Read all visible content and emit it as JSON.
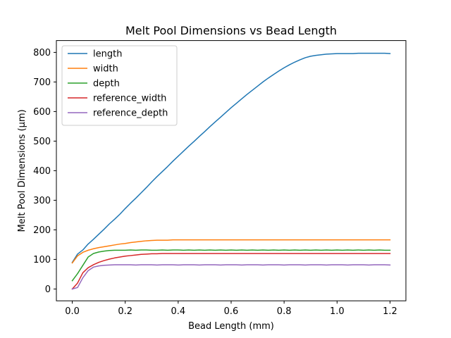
{
  "chart_data": {
    "type": "line",
    "title": "Melt Pool Dimensions vs Bead Length",
    "xlabel": "Bead Length (mm)",
    "ylabel": "Melt Pool Dimensions (µm)",
    "xlim": [
      -0.06,
      1.26
    ],
    "ylim": [
      -40,
      840
    ],
    "xticks": [
      0.0,
      0.2,
      0.4,
      0.6,
      0.8,
      1.0,
      1.2
    ],
    "xtick_labels": [
      "0.0",
      "0.2",
      "0.4",
      "0.6",
      "0.8",
      "1.0",
      "1.2"
    ],
    "yticks": [
      0,
      100,
      200,
      300,
      400,
      500,
      600,
      700,
      800
    ],
    "ytick_labels": [
      "0",
      "100",
      "200",
      "300",
      "400",
      "500",
      "600",
      "700",
      "800"
    ],
    "grid": false,
    "legend_position": "top-left",
    "x": [
      0.0,
      0.02,
      0.04,
      0.06,
      0.08,
      0.1,
      0.12,
      0.14,
      0.16,
      0.18,
      0.2,
      0.22,
      0.24,
      0.26,
      0.28,
      0.3,
      0.32,
      0.34,
      0.36,
      0.38,
      0.4,
      0.42,
      0.44,
      0.46,
      0.48,
      0.5,
      0.52,
      0.54,
      0.56,
      0.58,
      0.6,
      0.62,
      0.64,
      0.66,
      0.68,
      0.7,
      0.72,
      0.74,
      0.76,
      0.78,
      0.8,
      0.82,
      0.84,
      0.86,
      0.88,
      0.9,
      0.92,
      0.94,
      0.96,
      0.98,
      1.0,
      1.02,
      1.04,
      1.06,
      1.08,
      1.1,
      1.12,
      1.14,
      1.16,
      1.18,
      1.2
    ],
    "series": [
      {
        "name": "length",
        "color": "#1f77b4",
        "values": [
          90,
          118,
          132,
          152,
          168,
          185,
          202,
          220,
          236,
          253,
          272,
          290,
          307,
          325,
          343,
          362,
          380,
          397,
          414,
          432,
          449,
          466,
          483,
          499,
          516,
          532,
          549,
          565,
          581,
          597,
          613,
          628,
          643,
          658,
          672,
          686,
          700,
          713,
          725,
          737,
          748,
          758,
          767,
          775,
          782,
          787,
          790,
          792,
          794,
          795,
          796,
          796,
          796,
          796,
          797,
          797,
          797,
          797,
          797,
          797,
          796
        ]
      },
      {
        "name": "width",
        "color": "#ff7f0e",
        "values": [
          88,
          112,
          124,
          131,
          136,
          140,
          143,
          146,
          149,
          152,
          154,
          157,
          159,
          161,
          163,
          164,
          165,
          165,
          165,
          166,
          166,
          166,
          166,
          166,
          166,
          166,
          166,
          166,
          166,
          166,
          166,
          166,
          166,
          166,
          166,
          166,
          166,
          166,
          166,
          166,
          166,
          166,
          166,
          166,
          166,
          166,
          166,
          166,
          166,
          166,
          166,
          166,
          166,
          166,
          166,
          166,
          166,
          166,
          166,
          166,
          166
        ]
      },
      {
        "name": "depth",
        "color": "#2ca02c",
        "values": [
          28,
          52,
          80,
          108,
          120,
          125,
          128,
          130,
          131,
          131,
          131,
          132,
          131,
          132,
          132,
          131,
          131,
          132,
          131,
          132,
          132,
          131,
          132,
          131,
          132,
          131,
          132,
          131,
          132,
          131,
          132,
          131,
          132,
          131,
          132,
          131,
          132,
          131,
          132,
          131,
          132,
          131,
          132,
          131,
          132,
          131,
          132,
          131,
          132,
          131,
          132,
          131,
          132,
          131,
          132,
          131,
          132,
          131,
          132,
          131,
          131
        ]
      },
      {
        "name": "reference_width",
        "color": "#d62728",
        "values": [
          0,
          20,
          55,
          72,
          82,
          90,
          96,
          101,
          105,
          108,
          111,
          113,
          115,
          117,
          118,
          119,
          119,
          120,
          120,
          120,
          120,
          120,
          120,
          120,
          120,
          120,
          120,
          120,
          120,
          120,
          120,
          120,
          120,
          120,
          120,
          120,
          120,
          120,
          120,
          120,
          120,
          120,
          120,
          120,
          120,
          120,
          120,
          120,
          120,
          120,
          120,
          120,
          120,
          120,
          120,
          120,
          120,
          120,
          120,
          120,
          120
        ]
      },
      {
        "name": "reference_depth",
        "color": "#9467bd",
        "values": [
          0,
          5,
          38,
          62,
          74,
          78,
          80,
          81,
          82,
          82,
          82,
          82,
          81,
          82,
          82,
          82,
          81,
          82,
          82,
          82,
          81,
          82,
          82,
          82,
          81,
          82,
          82,
          82,
          81,
          82,
          82,
          82,
          81,
          82,
          82,
          82,
          81,
          82,
          82,
          82,
          81,
          82,
          82,
          82,
          81,
          82,
          82,
          82,
          81,
          82,
          82,
          82,
          81,
          82,
          82,
          82,
          81,
          82,
          82,
          82,
          81
        ]
      }
    ]
  }
}
